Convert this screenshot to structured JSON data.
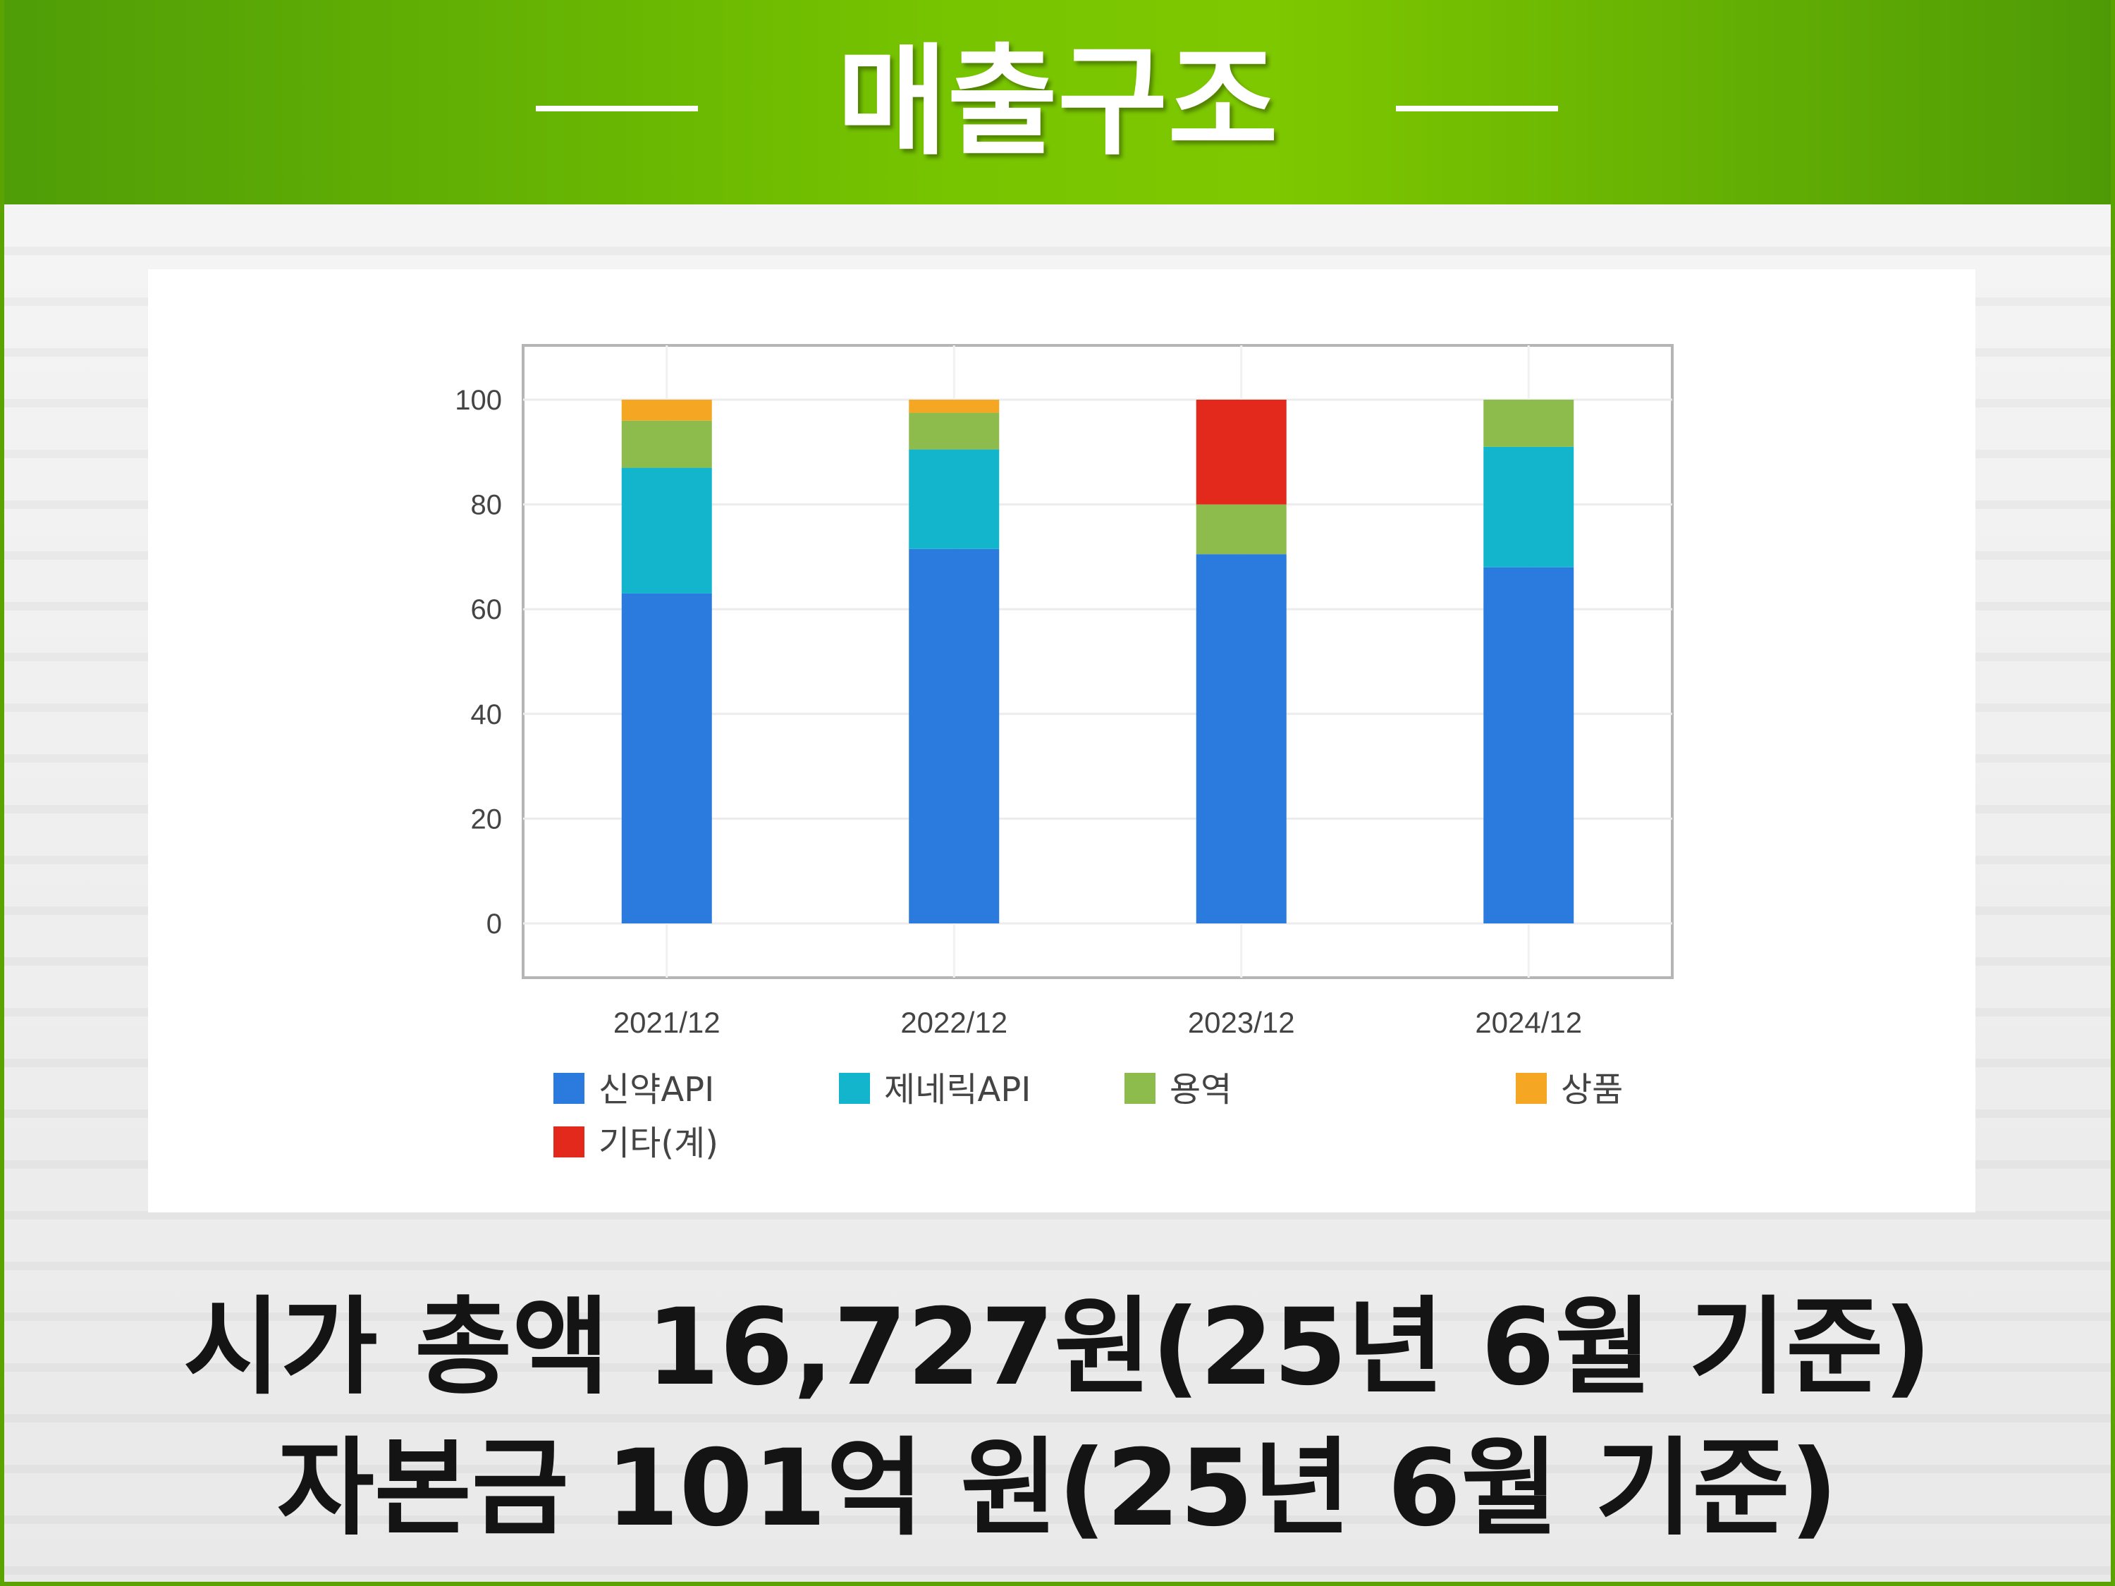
{
  "header": {
    "title": "매출구조"
  },
  "captions": {
    "line1": "시가 총액 16,727원(25년 6월 기준)",
    "line2": "자본금 101억 원(25년 6월 기준)"
  },
  "colors": {
    "header_green": "#6fbb00",
    "신약API": "#2b7bde",
    "제네릭API": "#12b5cb",
    "용역": "#8dbb4c",
    "상품": "#f5a623",
    "기타(계)": "#e3281c"
  },
  "chart_data": {
    "type": "bar",
    "stacked": true,
    "categories": [
      "2021/12",
      "2022/12",
      "2023/12",
      "2024/12"
    ],
    "ylim": [
      0,
      100
    ],
    "yticks": [
      0,
      20,
      40,
      60,
      80,
      100
    ],
    "grid": true,
    "legend_position": "bottom",
    "series": [
      {
        "name": "신약API",
        "color": "#2b7bde",
        "values": [
          63,
          71.5,
          70.5,
          68
        ]
      },
      {
        "name": "제네릭API",
        "color": "#12b5cb",
        "values": [
          24,
          19,
          0,
          23
        ]
      },
      {
        "name": "용역",
        "color": "#8dbb4c",
        "values": [
          9,
          7,
          9.5,
          9
        ]
      },
      {
        "name": "상품",
        "color": "#f5a623",
        "values": [
          4,
          2.5,
          0,
          0
        ]
      },
      {
        "name": "기타(계)",
        "color": "#e3281c",
        "values": [
          0,
          0,
          20,
          0
        ]
      }
    ]
  }
}
